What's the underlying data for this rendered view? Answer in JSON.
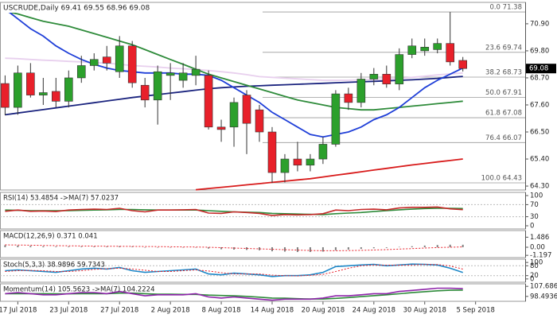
{
  "chart_data": [
    {
      "type": "candlestick",
      "title": "USCRUDE,Daily  69.41 69.55 68.96 69.08",
      "open": [
        68.47,
        67.5,
        68.9,
        68.0,
        68.15,
        67.75,
        68.7,
        69.2,
        69.55,
        68.95,
        70.0,
        68.4,
        67.8,
        68.8,
        68.6,
        68.8,
        68.8,
        66.7,
        66.7,
        68.0,
        67.4,
        66.5,
        64.85,
        65.4,
        65.15,
        65.4,
        66.0,
        68.05,
        67.7,
        68.65,
        68.85,
        68.45,
        69.65,
        69.8,
        69.85,
        70.1,
        69.41
      ],
      "high": [
        68.8,
        69.2,
        69.3,
        68.7,
        68.7,
        69.0,
        69.6,
        69.7,
        70.0,
        70.4,
        70.2,
        68.7,
        69.2,
        69.3,
        69.3,
        69.6,
        69.0,
        67.0,
        67.9,
        68.2,
        67.6,
        66.7,
        65.6,
        66.1,
        65.6,
        66.3,
        68.2,
        68.3,
        68.9,
        69.1,
        69.2,
        69.9,
        70.3,
        70.3,
        70.3,
        71.38,
        69.55
      ],
      "low": [
        67.18,
        67.2,
        67.9,
        67.6,
        67.5,
        67.5,
        68.5,
        69.0,
        69.0,
        68.7,
        68.3,
        67.5,
        66.8,
        67.8,
        68.3,
        68.4,
        66.6,
        66.1,
        65.9,
        65.6,
        66.1,
        64.43,
        64.45,
        64.9,
        64.9,
        65.2,
        65.9,
        67.4,
        67.5,
        68.4,
        68.3,
        68.2,
        69.5,
        69.6,
        69.7,
        69.2,
        68.96
      ],
      "close": [
        67.5,
        68.9,
        68.0,
        68.1,
        67.75,
        68.7,
        69.2,
        69.45,
        69.3,
        70.0,
        68.5,
        67.8,
        68.95,
        68.9,
        68.9,
        69.05,
        66.7,
        66.6,
        67.7,
        66.85,
        66.5,
        64.85,
        65.4,
        65.15,
        65.4,
        66.0,
        68.05,
        67.7,
        68.65,
        68.85,
        68.45,
        69.65,
        70.0,
        69.95,
        70.1,
        69.35,
        69.08
      ],
      "up_color": "#2ca02c",
      "down_color": "#e8202a",
      "lines": [
        {
          "color": "#e8d0ee",
          "values": [
            69.5,
            69.48,
            69.45,
            69.42,
            69.4,
            69.37,
            69.35,
            69.32,
            69.3,
            69.25,
            69.2,
            69.17,
            69.14,
            69.1,
            69.07,
            69.04,
            69.0,
            68.95,
            68.9,
            68.83,
            68.75,
            68.72,
            68.69,
            68.66,
            68.63,
            68.6,
            68.6,
            68.6,
            68.62,
            68.64,
            68.65,
            68.68,
            68.72,
            68.77,
            68.82,
            68.86,
            68.9
          ]
        },
        {
          "color": "#1a237e",
          "values": [
            67.2,
            67.27,
            67.34,
            67.41,
            67.48,
            67.55,
            67.62,
            67.69,
            67.76,
            67.83,
            67.9,
            67.96,
            68.02,
            68.08,
            68.14,
            68.2,
            68.26,
            68.3,
            68.33,
            68.36,
            68.38,
            68.4,
            68.42,
            68.44,
            68.46,
            68.48,
            68.5,
            68.52,
            68.54,
            68.56,
            68.58,
            68.6,
            68.62,
            68.65,
            68.68,
            68.72,
            68.76
          ]
        },
        {
          "color": "#2e8b3a",
          "values": [
            71.4,
            71.3,
            71.15,
            71.0,
            70.9,
            70.8,
            70.65,
            70.5,
            70.35,
            70.2,
            70.05,
            69.85,
            69.65,
            69.45,
            69.25,
            69.05,
            68.85,
            68.7,
            68.55,
            68.4,
            68.25,
            68.1,
            67.95,
            67.8,
            67.7,
            67.6,
            67.5,
            67.45,
            67.4,
            67.4,
            67.45,
            67.5,
            67.55,
            67.6,
            67.65,
            67.7,
            67.75
          ]
        },
        {
          "color": "#1f3fd8",
          "values": [
            71.5,
            71.1,
            70.7,
            70.4,
            70.0,
            69.7,
            69.45,
            69.25,
            69.1,
            69.0,
            68.95,
            68.9,
            68.9,
            68.9,
            68.85,
            68.85,
            68.8,
            68.6,
            68.3,
            68.0,
            67.7,
            67.3,
            67.0,
            66.7,
            66.4,
            66.3,
            66.4,
            66.5,
            66.7,
            67.0,
            67.2,
            67.5,
            67.9,
            68.3,
            68.6,
            68.85,
            69.1
          ]
        },
        {
          "color": "#d81b1b",
          "values": [
            null,
            null,
            null,
            null,
            null,
            null,
            null,
            null,
            null,
            null,
            null,
            null,
            null,
            null,
            null,
            64.15,
            64.2,
            64.25,
            64.3,
            64.35,
            64.4,
            64.45,
            64.5,
            64.55,
            64.6,
            64.67,
            64.74,
            64.81,
            64.88,
            64.95,
            65.02,
            65.09,
            65.16,
            65.22,
            65.28,
            65.34,
            65.4
          ]
        }
      ],
      "fib_levels": [
        {
          "value": 71.38,
          "label": "0.0 71.38"
        },
        {
          "value": 69.74,
          "label": "23.6 69.74"
        },
        {
          "value": 68.73,
          "label": "38.2 68.73"
        },
        {
          "value": 67.91,
          "label": "50.0 67.91"
        },
        {
          "value": 67.08,
          "label": "61.8 67.08"
        },
        {
          "value": 66.07,
          "label": "76.4 66.07"
        },
        {
          "value": 64.43,
          "label": "100.0 64.43"
        }
      ],
      "last_price": {
        "value": 69.08,
        "label": "69.08"
      },
      "ylim": [
        64.14,
        71.77
      ],
      "yticks": [
        {
          "value": 70.9,
          "label": "70.90"
        },
        {
          "value": 69.8,
          "label": "69.80"
        },
        {
          "value": 68.7,
          "label": "68.70"
        },
        {
          "value": 67.6,
          "label": "67.60"
        },
        {
          "value": 66.5,
          "label": "66.50"
        },
        {
          "value": 65.4,
          "label": "65.40"
        },
        {
          "value": 64.3,
          "label": "64.30"
        }
      ],
      "xlim": [
        -0.4,
        40.9
      ],
      "xticks": [
        {
          "value": 1,
          "label": "17 Jul 2018"
        },
        {
          "value": 5,
          "label": "23 Jul 2018"
        },
        {
          "value": 9,
          "label": "27 Jul 2018"
        },
        {
          "value": 13,
          "label": "2 Aug 2018"
        },
        {
          "value": 17,
          "label": "8 Aug 2018"
        },
        {
          "value": 21,
          "label": "14 Aug 2018"
        },
        {
          "value": 25,
          "label": "20 Aug 2018"
        },
        {
          "value": 29,
          "label": "24 Aug 2018"
        },
        {
          "value": 33,
          "label": "30 Aug 2018"
        },
        {
          "value": 37,
          "label": "5 Sep 2018"
        }
      ]
    },
    {
      "type": "indicator",
      "title": "RSI(14) 53.4854 ->MA(7) 57.0237",
      "series": [
        {
          "color": "#2e8b3a",
          "style": "line",
          "values": [
            52,
            51,
            50,
            50,
            50,
            50,
            51,
            52,
            53,
            54,
            54,
            53,
            52,
            52,
            52,
            52,
            50,
            48,
            46,
            45,
            44,
            41,
            40,
            39,
            38,
            37,
            40,
            42,
            44,
            47,
            50,
            53,
            55,
            57,
            58,
            58,
            57.0237
          ]
        },
        {
          "color": "#c62828",
          "style": "line",
          "values": [
            48,
            52,
            48,
            49,
            47,
            52,
            54,
            55,
            54,
            58,
            50,
            46,
            52,
            52,
            53,
            54,
            42,
            41,
            46,
            44,
            41,
            34,
            37,
            36,
            37,
            40,
            52,
            50,
            54,
            55,
            53,
            59,
            61,
            61,
            62,
            56,
            53.4854
          ]
        }
      ],
      "ylim": [
        -10.5,
        110.5
      ],
      "yticks": [
        100,
        70,
        30,
        0
      ],
      "grid_ticks": [
        70,
        30
      ]
    },
    {
      "type": "indicator",
      "title": "MACD(12,26,9) 0.371 0.041",
      "series": [
        {
          "color": "#808080",
          "style": "bar",
          "values": [
            0.3,
            0.25,
            0.2,
            0.15,
            0.1,
            0.1,
            0.1,
            0.1,
            0.1,
            0.15,
            0.1,
            0.0,
            0.0,
            0.0,
            0.0,
            0.0,
            -0.2,
            -0.3,
            -0.35,
            -0.4,
            -0.45,
            -0.6,
            -0.65,
            -0.7,
            -0.7,
            -0.65,
            -0.45,
            -0.35,
            -0.25,
            -0.15,
            -0.1,
            0.05,
            0.15,
            0.25,
            0.33,
            0.38,
            0.371
          ]
        },
        {
          "color": "#e8202a",
          "style": "dotted",
          "values": [
            0.35,
            0.33,
            0.3,
            0.27,
            0.24,
            0.21,
            0.19,
            0.17,
            0.15,
            0.14,
            0.13,
            0.11,
            0.09,
            0.07,
            0.05,
            0.04,
            0.0,
            -0.06,
            -0.12,
            -0.18,
            -0.24,
            -0.3,
            -0.37,
            -0.43,
            -0.48,
            -0.52,
            -0.52,
            -0.5,
            -0.46,
            -0.41,
            -0.35,
            -0.27,
            -0.2,
            -0.12,
            -0.05,
            0.0,
            0.041
          ]
        }
      ],
      "ylim": [
        -1.53,
        2.47
      ],
      "yticks": [
        1.486,
        {
          "value": 0,
          "label": "0.00"
        },
        -1.197
      ],
      "grid_ticks": []
    },
    {
      "type": "indicator",
      "title": "Stoch(5,3,3) 38.9896 59.7343",
      "series": [
        {
          "color": "#1e88c8",
          "style": "line",
          "values": [
            50,
            55,
            50,
            45,
            40,
            50,
            60,
            65,
            60,
            70,
            50,
            40,
            45,
            50,
            55,
            60,
            30,
            25,
            35,
            30,
            25,
            15,
            20,
            20,
            25,
            40,
            75,
            80,
            85,
            88,
            80,
            85,
            90,
            88,
            85,
            65,
            38.9896
          ]
        },
        {
          "color": "#e8202a",
          "style": "dotted",
          "values": [
            45,
            50,
            52,
            50,
            45,
            45,
            50,
            58,
            62,
            65,
            60,
            53,
            45,
            45,
            50,
            55,
            48,
            38,
            30,
            30,
            30,
            23,
            20,
            18,
            22,
            28,
            45,
            65,
            80,
            85,
            84,
            84,
            85,
            88,
            87,
            79,
            59.7343
          ]
        }
      ],
      "ylim": [
        -20,
        120
      ],
      "yticks": [
        100,
        80,
        20,
        0
      ],
      "grid_ticks": [
        80,
        20
      ]
    },
    {
      "type": "indicator",
      "title": "Momentum(14) 105.5623 ->MA(7) 104.2224",
      "series": [
        {
          "color": "#2e8b3a",
          "style": "line",
          "values": [
            101,
            101,
            101,
            101,
            100.8,
            100.8,
            101,
            101,
            101,
            101.5,
            101.5,
            101,
            100.5,
            100.5,
            100.3,
            100.3,
            99.7,
            99.3,
            99,
            98.5,
            97.8,
            97,
            96.8,
            96.4,
            96.1,
            96.1,
            96.7,
            97.4,
            98.3,
            99.2,
            100,
            100.9,
            101.9,
            102.8,
            103.6,
            104.1,
            104.2224
          ]
        },
        {
          "color": "#8e24aa",
          "style": "line",
          "values": [
            101,
            102,
            101,
            100,
            100,
            101,
            102,
            102,
            101,
            103,
            101,
            99,
            100,
            100,
            100,
            101,
            98,
            97,
            98,
            97,
            96,
            95,
            96,
            96,
            96,
            97,
            99,
            99,
            100,
            101,
            101,
            103,
            104,
            105,
            106,
            106,
            105.5623
          ]
        }
      ],
      "ylim": [
        94,
        110
      ],
      "yticks": [
        {
          "value": 107.686,
          "label": "107.6860"
        },
        98.4936
      ],
      "grid_ticks": []
    }
  ]
}
